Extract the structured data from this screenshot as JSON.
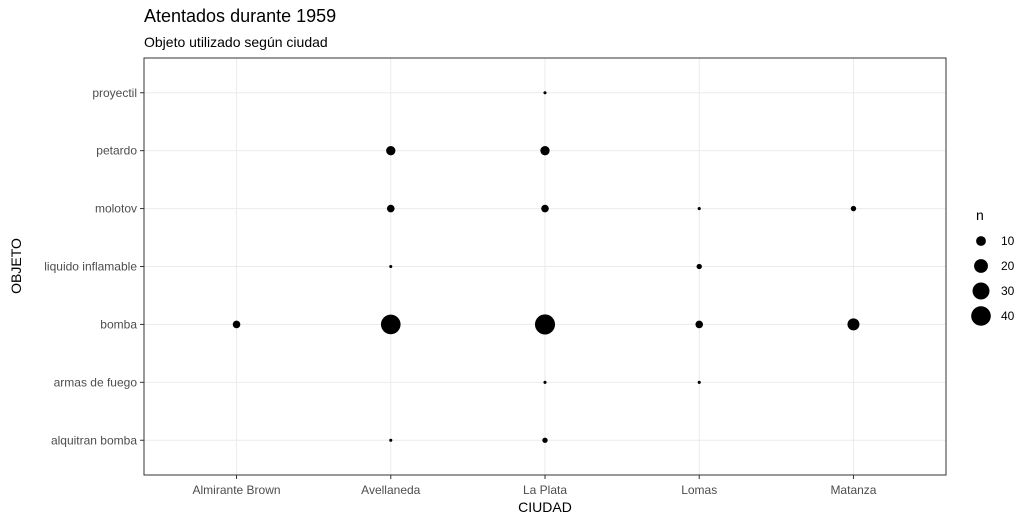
{
  "chart_data": {
    "type": "scatter",
    "title": "Atentados durante 1959",
    "subtitle": "Objeto utilizado según ciudad",
    "xlabel": "CIUDAD",
    "ylabel": "OBJETO",
    "categories_x": [
      "Almirante Brown",
      "Avellaneda",
      "La Plata",
      "Lomas",
      "Matanza"
    ],
    "categories_y": [
      "alquitran bomba",
      "armas de fuego",
      "bomba",
      "liquido inflamable",
      "molotov",
      "petardo",
      "proyectil"
    ],
    "points": [
      {
        "x": "Almirante Brown",
        "y": "bomba",
        "n": 6
      },
      {
        "x": "Avellaneda",
        "y": "alquitran bomba",
        "n": 1
      },
      {
        "x": "Avellaneda",
        "y": "bomba",
        "n": 40
      },
      {
        "x": "Avellaneda",
        "y": "liquido inflamable",
        "n": 1
      },
      {
        "x": "Avellaneda",
        "y": "molotov",
        "n": 6
      },
      {
        "x": "Avellaneda",
        "y": "petardo",
        "n": 9
      },
      {
        "x": "La Plata",
        "y": "alquitran bomba",
        "n": 3
      },
      {
        "x": "La Plata",
        "y": "armas de fuego",
        "n": 1
      },
      {
        "x": "La Plata",
        "y": "bomba",
        "n": 42
      },
      {
        "x": "La Plata",
        "y": "molotov",
        "n": 6
      },
      {
        "x": "La Plata",
        "y": "petardo",
        "n": 9
      },
      {
        "x": "La Plata",
        "y": "proyectil",
        "n": 1
      },
      {
        "x": "Lomas",
        "y": "armas de fuego",
        "n": 1
      },
      {
        "x": "Lomas",
        "y": "bomba",
        "n": 6
      },
      {
        "x": "Lomas",
        "y": "liquido inflamable",
        "n": 3
      },
      {
        "x": "Lomas",
        "y": "molotov",
        "n": 1
      },
      {
        "x": "Matanza",
        "y": "bomba",
        "n": 15
      },
      {
        "x": "Matanza",
        "y": "molotov",
        "n": 3
      }
    ],
    "size_legend": {
      "title": "n",
      "values": [
        10,
        20,
        30,
        40
      ]
    },
    "legend_position": "right",
    "grid": true,
    "point_color": "#000000"
  }
}
